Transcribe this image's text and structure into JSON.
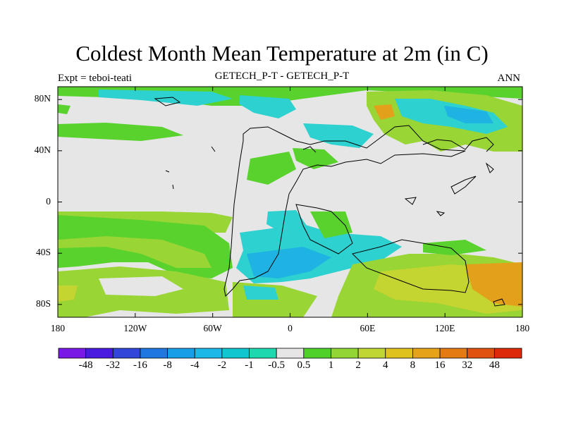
{
  "title": "Coldest Month Mean Temperature at 2m (in C)",
  "left_label": "Expt = teboi-teati",
  "center_label": "GETECH_P-T - GETECH_P-T",
  "right_label": "ANN",
  "y_axis": {
    "ticks": [
      "80N",
      "40N",
      "0",
      "40S",
      "80S"
    ],
    "values": [
      80,
      40,
      0,
      -40,
      -80
    ]
  },
  "x_axis": {
    "ticks": [
      "180",
      "120W",
      "60W",
      "0",
      "60E",
      "120E",
      "180"
    ],
    "values": [
      -180,
      -120,
      -60,
      0,
      60,
      120,
      180
    ]
  },
  "colorbar": {
    "labels": [
      "-48",
      "-32",
      "-16",
      "-8",
      "-4",
      "-2",
      "-1",
      "-0.5",
      "0.5",
      "1",
      "2",
      "4",
      "8",
      "16",
      "32",
      "48"
    ],
    "colors": [
      "#7a19e6",
      "#4a1ae0",
      "#3246d8",
      "#1f78e0",
      "#189ee6",
      "#1bb8e8",
      "#12c6cf",
      "#1ed9b0",
      "#e6e6e6",
      "#4fd12a",
      "#93d534",
      "#c0d632",
      "#e0c21e",
      "#e6a218",
      "#e37a12",
      "#e0500e",
      "#dd2a0a"
    ]
  },
  "colors": {
    "neutral": "#e6e6e6",
    "green": "#5ad22e",
    "light_green": "#99d535",
    "cyan": "#2dd1cf",
    "sky": "#1fb3e3",
    "blue": "#2a8fe2",
    "yellow_green": "#c4d431",
    "orange": "#e3a01a"
  }
}
